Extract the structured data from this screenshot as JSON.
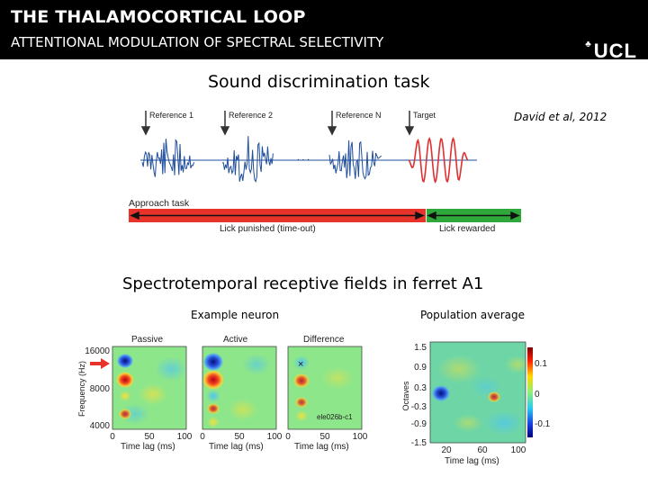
{
  "header": {
    "title": "THE THALAMOCORTICAL LOOP",
    "subtitle": "ATTENTIONAL MODULATION OF SPECTRAL SELECTIVITY",
    "logo": "UCL",
    "logo_crest": "♣"
  },
  "task": {
    "title": "Sound discrimination task",
    "citation": "David et al, 2012",
    "references": [
      "Reference 1",
      "Reference 2",
      "Reference N"
    ],
    "target": "Target",
    "ellipsis": ". . .",
    "approach": "Approach task",
    "punished": "Lick punished (time-out)",
    "rewarded": "Lick rewarded"
  },
  "strf": {
    "title": "Spectrotemporal receptive fields in ferret A1",
    "example_label": "Example neuron",
    "population_label": "Population average",
    "panels": [
      "Passive",
      "Active",
      "Difference"
    ],
    "cell_id": "ele026b-c1",
    "freq_axis_label": "Frequency (Hz)",
    "freq_ticks": [
      "16000",
      "8000",
      "4000"
    ],
    "lag_ticks": [
      "0",
      "50",
      "100"
    ],
    "lag_axis_label": "Time lag (ms)",
    "octave_axis_label": "Octaves",
    "octave_ticks": [
      "1.5",
      "0.9",
      "0.3",
      "-0.3",
      "-0.9",
      "-1.5"
    ],
    "pop_lag_ticks": [
      "20",
      "60",
      "100"
    ],
    "colorbar_ticks": [
      "0.1",
      "0",
      "-0.1"
    ]
  },
  "colors": {
    "header_bg": "#000000",
    "red_bar": "#e8332b",
    "green_bar": "#2ea83a",
    "wave_blue": "#1f4e9c",
    "target_red": "#e03030"
  }
}
